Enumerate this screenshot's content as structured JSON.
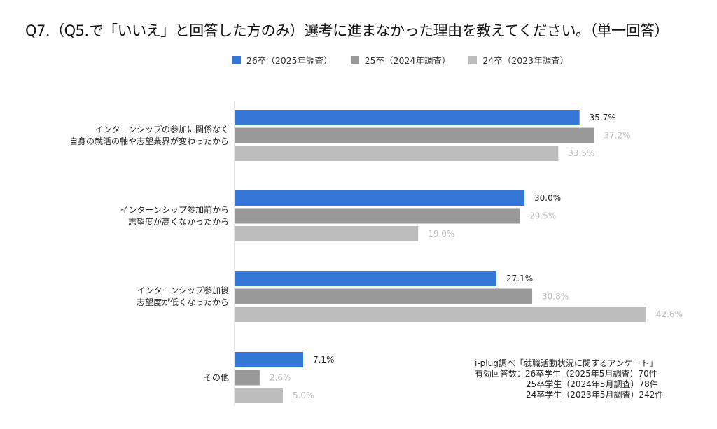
{
  "chart_data": {
    "type": "bar",
    "orientation": "horizontal",
    "title": "Q7.（Q5.で「いいえ」と回答した方のみ）選考に進まなかった理由を教えてください。（単一回答）",
    "categories": [
      [
        "インターンシップの参加に関係なく",
        "自身の就活の軸や志望業界が変わったから"
      ],
      [
        "インターンシップ参加前から",
        "志望度が高くなかったから"
      ],
      [
        "インターンシップ参加後",
        "志望度が低くなったから"
      ],
      [
        "その他"
      ]
    ],
    "series": [
      {
        "name": "26卒（2025年調査）",
        "color": "#3477d6",
        "label_color": "#222222",
        "values": [
          35.7,
          30.0,
          27.1,
          7.1
        ]
      },
      {
        "name": "25卒（2024年調査）",
        "color": "#999999",
        "label_color": "#bbbbbb",
        "values": [
          37.2,
          29.5,
          30.8,
          2.6
        ]
      },
      {
        "name": "24卒（2023年調査）",
        "color": "#bdbdbd",
        "label_color": "#bbbbbb",
        "values": [
          33.5,
          19.0,
          42.6,
          5.0
        ]
      }
    ],
    "value_suffix": "%",
    "legend_position": "top",
    "grid": false,
    "xlim": [
      0,
      42.6
    ]
  },
  "note": {
    "source": "i-plug調べ「就職活動状況に関するアンケート」",
    "respondents": [
      "有効回答数：26卒学生（2025年5月調査）70件",
      "25卒学生（2024年5月調査）78件",
      "24卒学生（2023年5月調査）242件"
    ]
  }
}
